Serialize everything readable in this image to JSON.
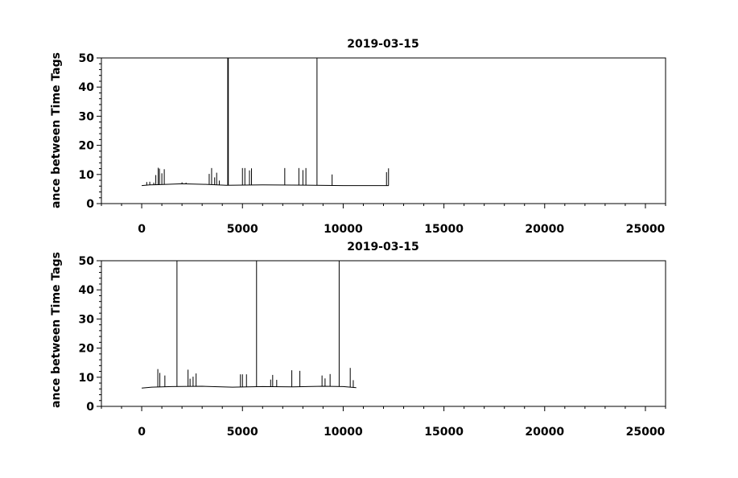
{
  "chart_data": [
    {
      "type": "line",
      "title": "2019-03-15",
      "ylabel": "ance between Time Tags",
      "xlabel": "",
      "xlim": [
        -2000,
        26000
      ],
      "ylim": [
        0,
        50
      ],
      "x_ticks": [
        0,
        5000,
        10000,
        15000,
        20000,
        25000
      ],
      "y_ticks": [
        0,
        10,
        20,
        30,
        40,
        50
      ],
      "grid": false,
      "series": [
        {
          "baseline": [
            [
              0,
              6.2
            ],
            [
              400,
              6.4
            ],
            [
              800,
              6.5
            ],
            [
              2000,
              6.8
            ],
            [
              3200,
              6.6
            ],
            [
              4200,
              6.3
            ],
            [
              6000,
              6.4
            ],
            [
              8600,
              6.3
            ],
            [
              10000,
              6.2
            ],
            [
              12260,
              6.2
            ]
          ],
          "spikes": [
            [
              250,
              7.4
            ],
            [
              400,
              7.5
            ],
            [
              600,
              7.2
            ],
            [
              700,
              9.8
            ],
            [
              820,
              12.3
            ],
            [
              880,
              12.0
            ],
            [
              1000,
              10.4
            ],
            [
              1120,
              11.8
            ],
            [
              2000,
              7.3
            ],
            [
              2200,
              7.2
            ],
            [
              3350,
              10.2
            ],
            [
              3470,
              12.2
            ],
            [
              3620,
              9.0
            ],
            [
              3720,
              10.6
            ],
            [
              3850,
              7.9
            ],
            [
              4270,
              50
            ],
            [
              4300,
              50
            ],
            [
              5000,
              12.2
            ],
            [
              5120,
              12.2
            ],
            [
              5350,
              11.4
            ],
            [
              5450,
              12.1
            ],
            [
              7100,
              12.2
            ],
            [
              7800,
              12.2
            ],
            [
              8000,
              11.5
            ],
            [
              8150,
              12.2
            ],
            [
              8700,
              50
            ],
            [
              9450,
              10.0
            ],
            [
              12150,
              10.8
            ],
            [
              12250,
              12.1
            ]
          ]
        }
      ]
    },
    {
      "type": "line",
      "title": "2019-03-15",
      "ylabel": "ance between Time Tags",
      "xlabel": "",
      "xlim": [
        -2000,
        26000
      ],
      "ylim": [
        0,
        50
      ],
      "x_ticks": [
        0,
        5000,
        10000,
        15000,
        20000,
        25000
      ],
      "y_ticks": [
        0,
        10,
        20,
        30,
        40,
        50
      ],
      "grid": false,
      "series": [
        {
          "baseline": [
            [
              0,
              6.3
            ],
            [
              500,
              6.6
            ],
            [
              1500,
              6.8
            ],
            [
              3000,
              6.9
            ],
            [
              4500,
              6.6
            ],
            [
              6000,
              6.8
            ],
            [
              7500,
              6.7
            ],
            [
              9000,
              6.9
            ],
            [
              10000,
              6.8
            ],
            [
              10650,
              6.4
            ]
          ],
          "spikes": [
            [
              800,
              12.8
            ],
            [
              900,
              11.5
            ],
            [
              1150,
              10.6
            ],
            [
              1750,
              50
            ],
            [
              2300,
              12.6
            ],
            [
              2400,
              9.5
            ],
            [
              2550,
              10.2
            ],
            [
              2700,
              11.3
            ],
            [
              4900,
              11.0
            ],
            [
              5000,
              11.0
            ],
            [
              5200,
              11.0
            ],
            [
              5700,
              50
            ],
            [
              6400,
              9.2
            ],
            [
              6500,
              10.8
            ],
            [
              6700,
              9.1
            ],
            [
              7450,
              12.4
            ],
            [
              7850,
              12.2
            ],
            [
              8950,
              10.6
            ],
            [
              9100,
              9.6
            ],
            [
              9350,
              11.1
            ],
            [
              9800,
              50
            ],
            [
              10350,
              13.2
            ],
            [
              10500,
              9.0
            ]
          ]
        }
      ]
    }
  ]
}
